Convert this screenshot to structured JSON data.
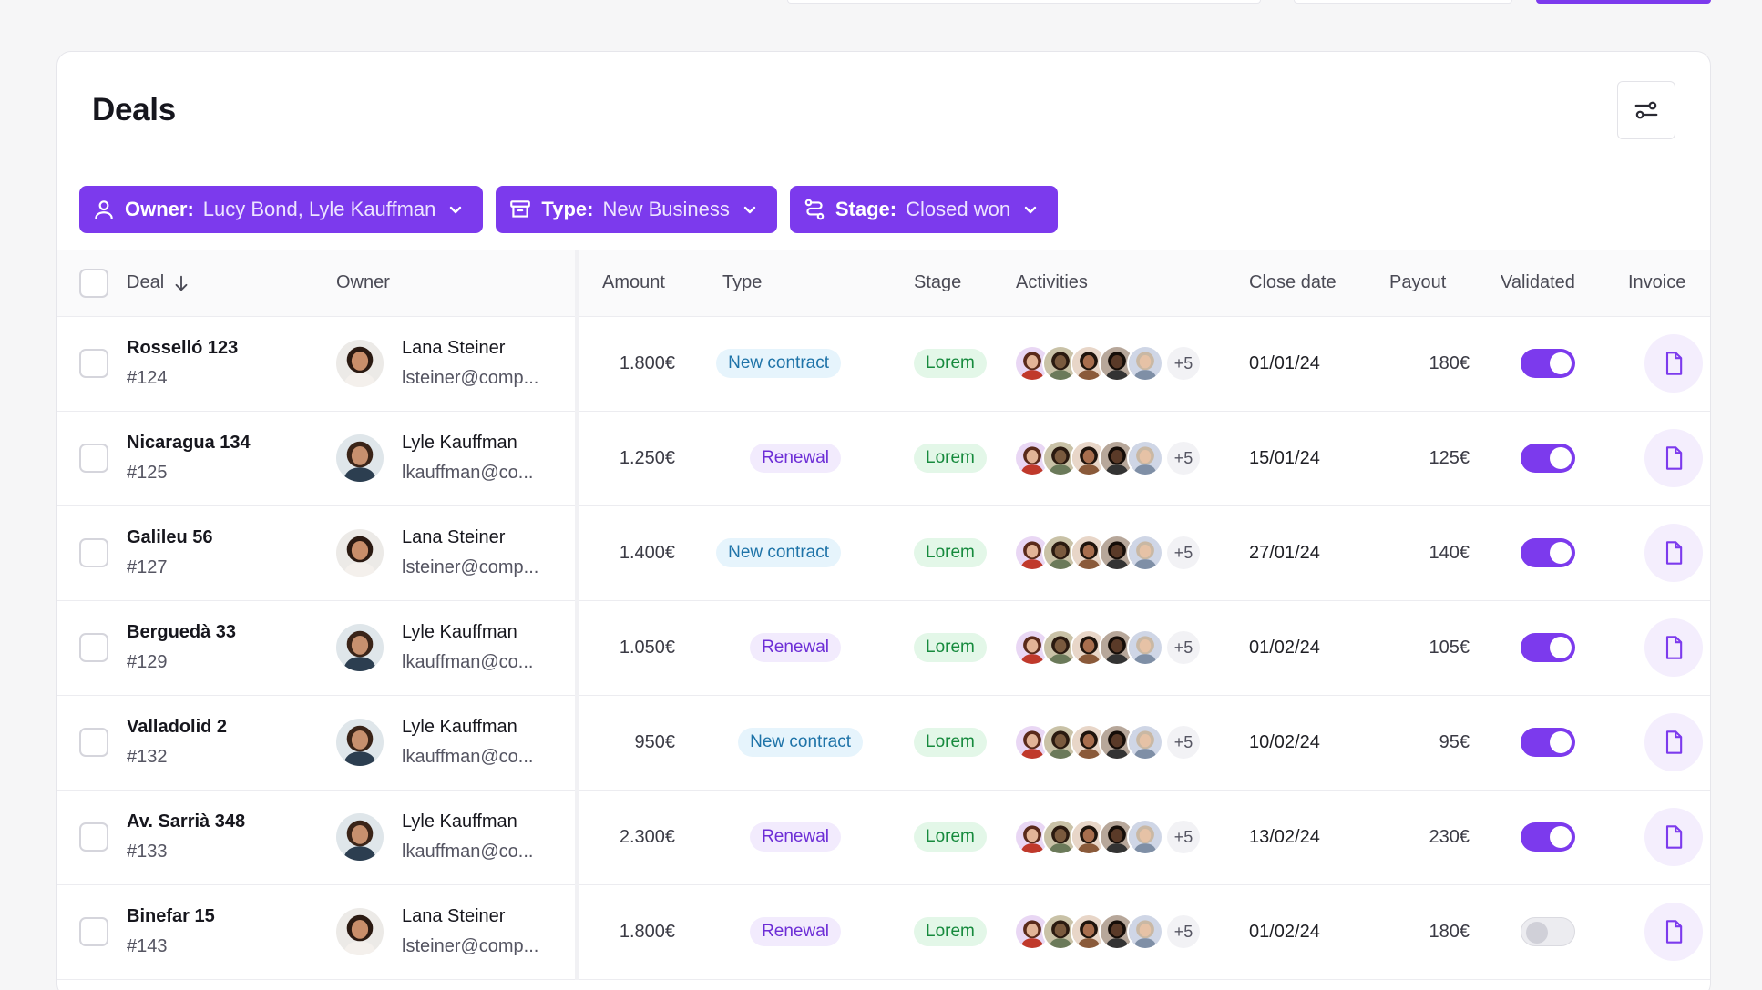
{
  "card": {
    "title": "Deals"
  },
  "filters": [
    {
      "key": "Owner:",
      "value": "Lucy Bond, Lyle Kauffman",
      "icon": "user-icon"
    },
    {
      "key": "Type:",
      "value": "New Business",
      "icon": "archive-icon"
    },
    {
      "key": "Stage:",
      "value": "Closed won",
      "icon": "route-icon"
    }
  ],
  "columns": {
    "deal": "Deal",
    "owner": "Owner",
    "amount": "Amount",
    "type": "Type",
    "stage": "Stage",
    "activities": "Activities",
    "close_date": "Close date",
    "payout": "Payout",
    "validated": "Validated",
    "invoice": "Invoice"
  },
  "colors": {
    "accent": "#7c3aed",
    "new_contract": "#1e73a8",
    "renewal": "#6d2ed6",
    "stage": "#168a3d"
  },
  "rows": [
    {
      "deal": "Rosselló 123",
      "id": "#124",
      "owner": "Lana Steiner",
      "email": "lsteiner@comp...",
      "amount": "1.800€",
      "type": "New contract",
      "stage": "Lorem",
      "more": "+5",
      "close": "01/01/24",
      "payout": "180€",
      "validated": true
    },
    {
      "deal": "Nicaragua 134",
      "id": "#125",
      "owner": "Lyle Kauffman",
      "email": "lkauffman@co...",
      "amount": "1.250€",
      "type": "Renewal",
      "stage": "Lorem",
      "more": "+5",
      "close": "15/01/24",
      "payout": "125€",
      "validated": true
    },
    {
      "deal": "Galileu 56",
      "id": "#127",
      "owner": "Lana Steiner",
      "email": "lsteiner@comp...",
      "amount": "1.400€",
      "type": "New contract",
      "stage": "Lorem",
      "more": "+5",
      "close": "27/01/24",
      "payout": "140€",
      "validated": true
    },
    {
      "deal": "Berguedà 33",
      "id": "#129",
      "owner": "Lyle Kauffman",
      "email": "lkauffman@co...",
      "amount": "1.050€",
      "type": "Renewal",
      "stage": "Lorem",
      "more": "+5",
      "close": "01/02/24",
      "payout": "105€",
      "validated": true
    },
    {
      "deal": "Valladolid 2",
      "id": "#132",
      "owner": "Lyle Kauffman",
      "email": "lkauffman@co...",
      "amount": "950€",
      "type": "New contract",
      "stage": "Lorem",
      "more": "+5",
      "close": "10/02/24",
      "payout": "95€",
      "validated": true
    },
    {
      "deal": "Av. Sarrià 348",
      "id": "#133",
      "owner": "Lyle Kauffman",
      "email": "lkauffman@co...",
      "amount": "2.300€",
      "type": "Renewal",
      "stage": "Lorem",
      "more": "+5",
      "close": "13/02/24",
      "payout": "230€",
      "validated": true
    },
    {
      "deal": "Binefar 15",
      "id": "#143",
      "owner": "Lana Steiner",
      "email": "lsteiner@comp...",
      "amount": "1.800€",
      "type": "Renewal",
      "stage": "Lorem",
      "more": "+5",
      "close": "01/02/24",
      "payout": "180€",
      "validated": false
    }
  ]
}
